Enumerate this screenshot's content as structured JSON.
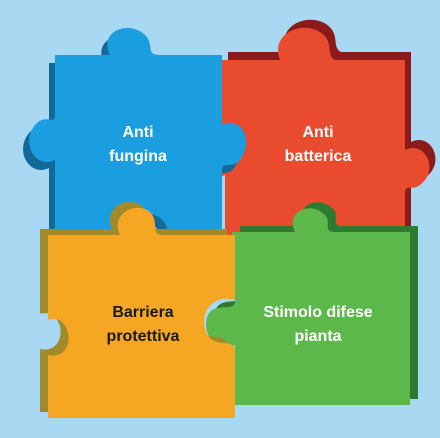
{
  "pieces": [
    {
      "lines": [
        "Anti",
        "fungina"
      ]
    },
    {
      "lines": [
        "Anti",
        "batterica"
      ]
    },
    {
      "lines": [
        "Barriera",
        "protettiva"
      ]
    },
    {
      "lines": [
        "Stimolo difese",
        "pianta"
      ]
    }
  ]
}
